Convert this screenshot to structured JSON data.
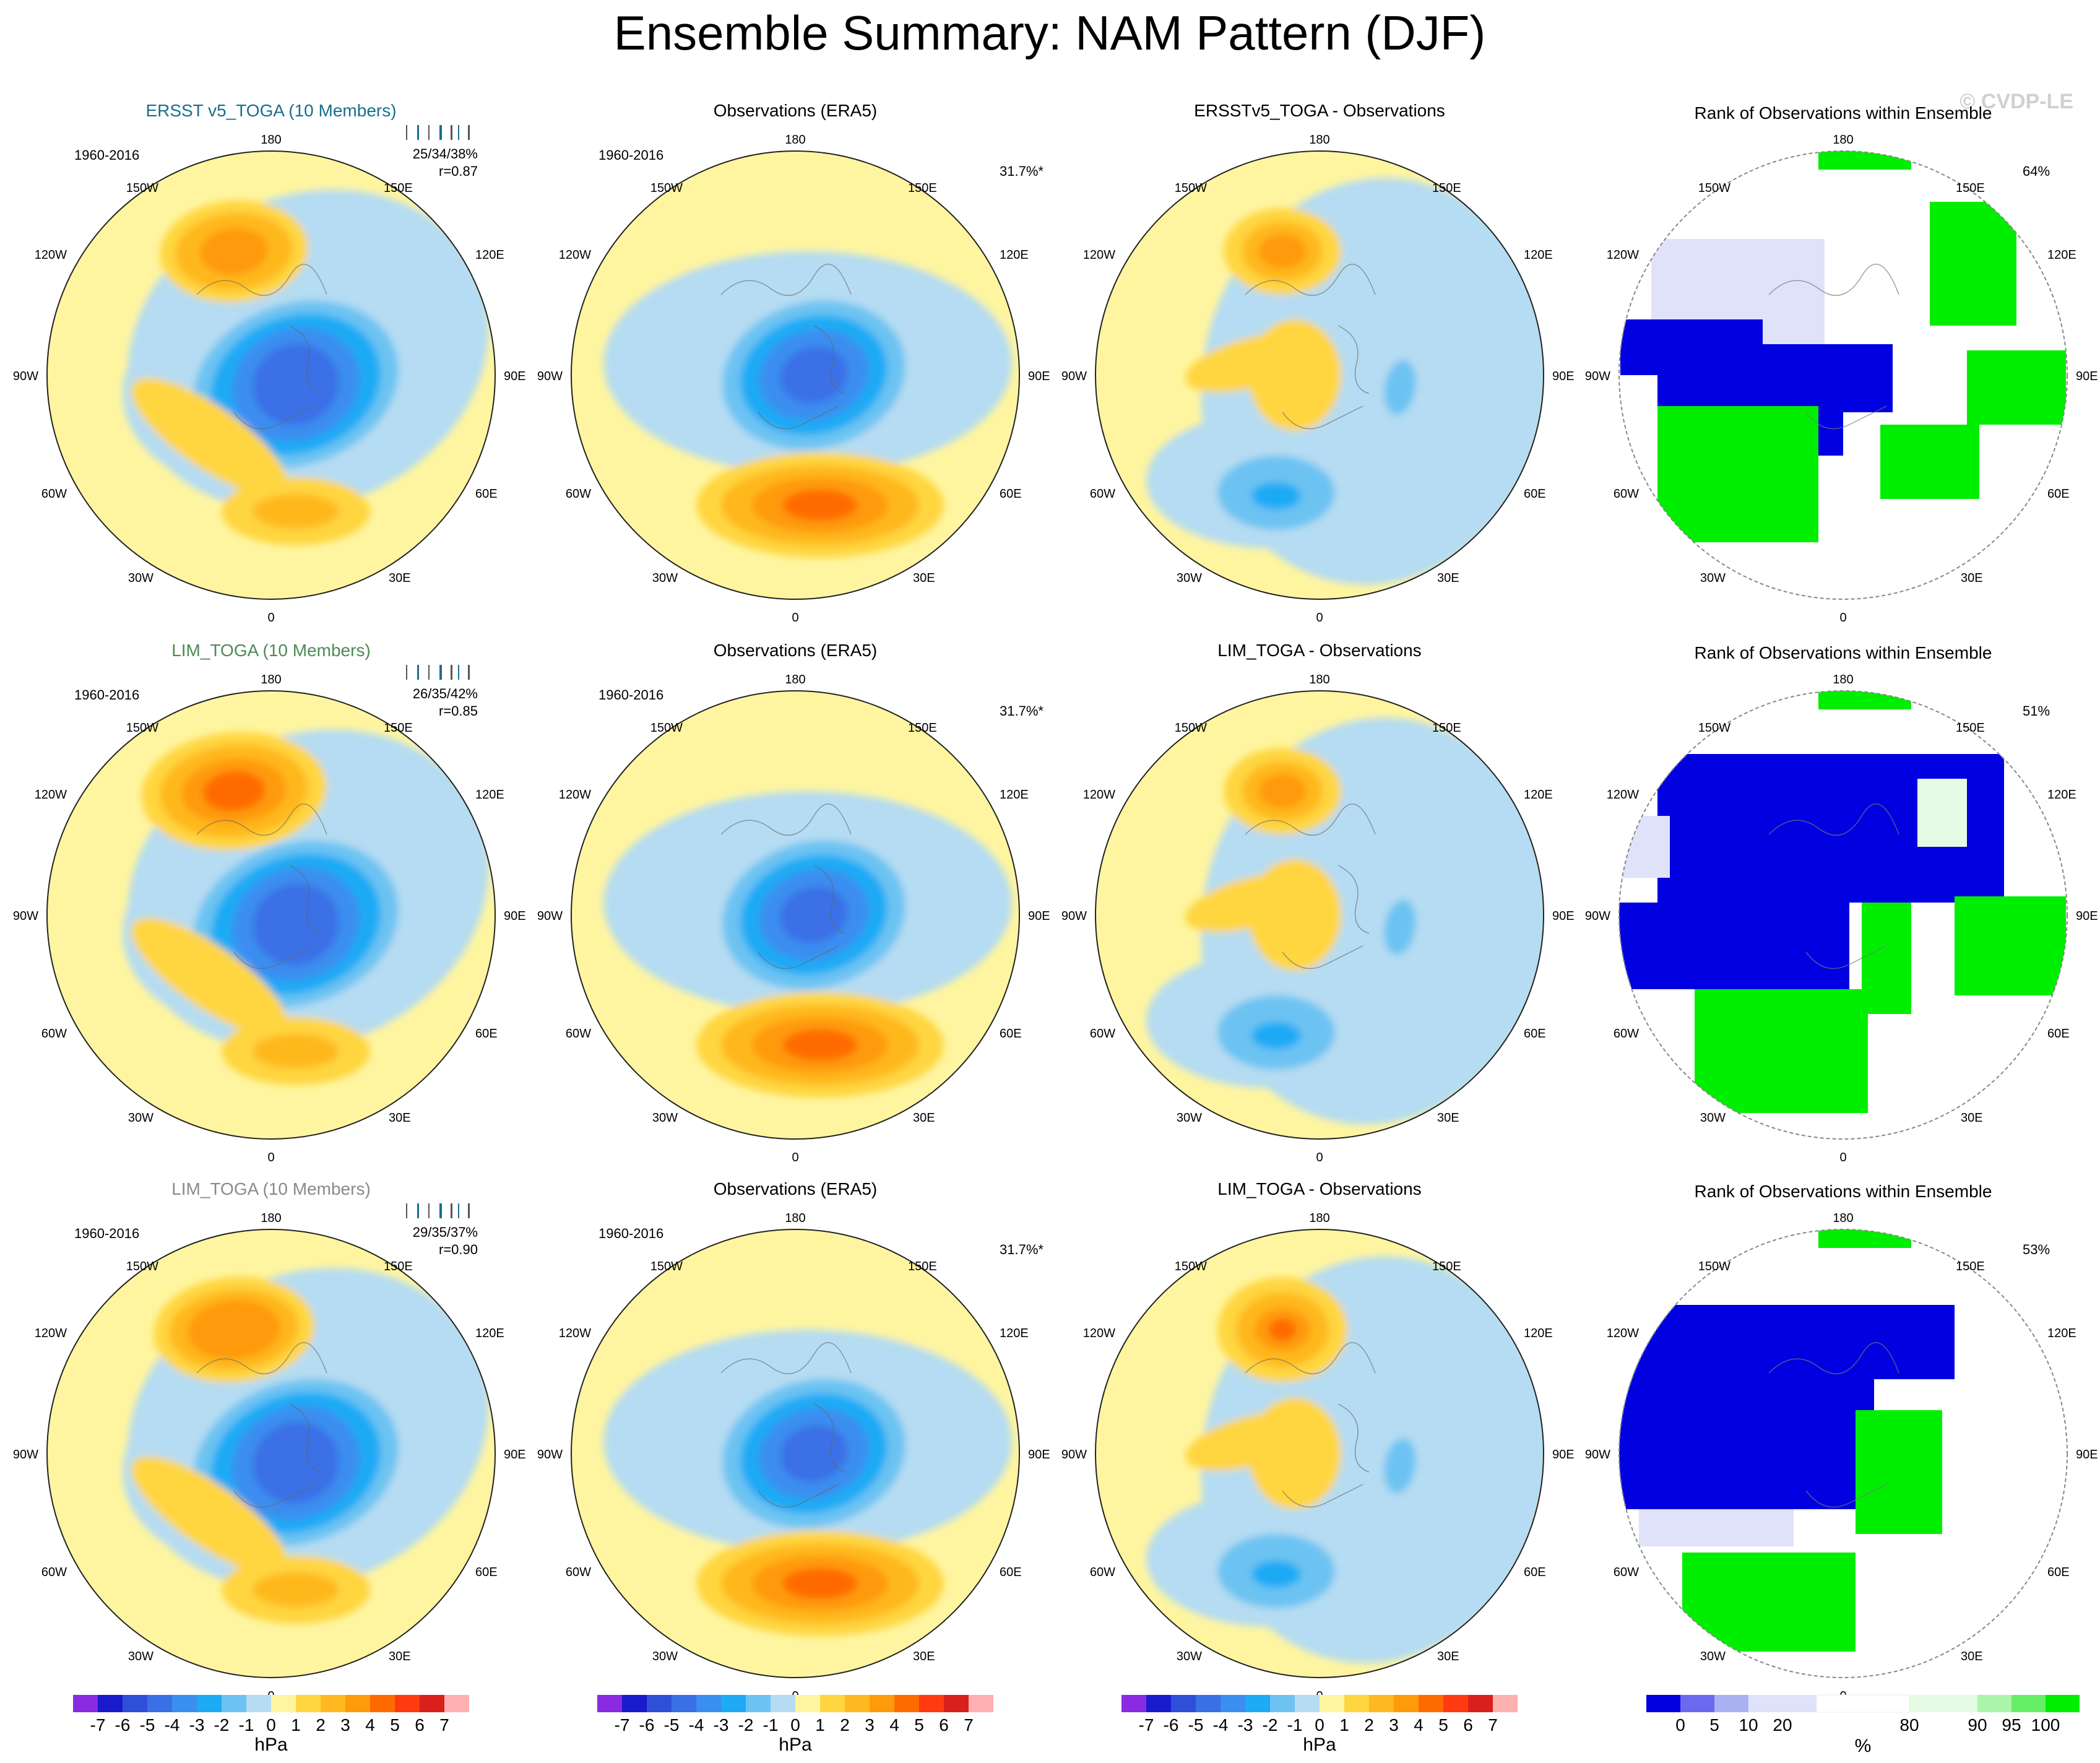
{
  "page": {
    "title": "Ensemble Summary: NAM Pattern (DJF)",
    "watermark": "© CVDP-LE"
  },
  "lon_labels": {
    "top": "180",
    "bottom": "0",
    "upper_left": "150W",
    "upper_right": "150E",
    "left_upper": "120W",
    "right_upper": "120E",
    "left": "90W",
    "right": "90E",
    "left_lower": "60W",
    "right_lower": "60E",
    "lower_left": "30W",
    "lower_right": "30E"
  },
  "rows": [
    {
      "ensemble": {
        "title": "ERSST v5_TOGA (10 Members)",
        "title_color": "#1a6e8e",
        "period": "1960-2016",
        "stats": "25/34/38%",
        "r": "r=0.87"
      },
      "observations": {
        "title": "Observations (ERA5)",
        "period": "1960-2016",
        "pct": "31.7%*"
      },
      "difference": {
        "title": "ERSSTv5_TOGA - Observations"
      },
      "rank": {
        "title": "Rank of Observations within Ensemble",
        "pct": "64%"
      }
    },
    {
      "ensemble": {
        "title": "LIM_TOGA (10 Members)",
        "title_color": "#4e8a56",
        "period": "1960-2016",
        "stats": "26/35/42%",
        "r": "r=0.85"
      },
      "observations": {
        "title": "Observations (ERA5)",
        "period": "1960-2016",
        "pct": "31.7%*"
      },
      "difference": {
        "title": "LIM_TOGA - Observations"
      },
      "rank": {
        "title": "Rank of Observations within Ensemble",
        "pct": "51%"
      }
    },
    {
      "ensemble": {
        "title": "LIM_TOGA (10 Members)",
        "title_color": "#8a8a8a",
        "period": "1960-2016",
        "stats": "29/35/37%",
        "r": "r=0.90"
      },
      "observations": {
        "title": "Observations (ERA5)",
        "period": "1960-2016",
        "pct": "31.7%*"
      },
      "difference": {
        "title": "LIM_TOGA - Observations"
      },
      "rank": {
        "title": "Rank of Observations within Ensemble",
        "pct": "53%"
      }
    }
  ],
  "colorbar_hpa": {
    "unit": "hPa",
    "labels": [
      "-7",
      "-6",
      "-5",
      "-4",
      "-3",
      "-2",
      "-1",
      "0",
      "1",
      "2",
      "3",
      "4",
      "5",
      "6",
      "7"
    ],
    "colors": [
      "#8a2be2",
      "#1a1acd",
      "#2f4fd8",
      "#3b6fe6",
      "#3a8ef0",
      "#1eaaf5",
      "#6cc3f2",
      "#b5dcf2",
      "#fff5a0",
      "#ffd640",
      "#ffb81f",
      "#ff9a0a",
      "#ff6a00",
      "#ff3a10",
      "#d9201c",
      "#ffb0b0"
    ]
  },
  "colorbar_pct": {
    "unit": "%",
    "labels": [
      "0",
      "5",
      "10",
      "20",
      "80",
      "90",
      "95",
      "100"
    ],
    "colors": [
      "#0000e0",
      "#6a6aee",
      "#aab0f2",
      "#e0e2fa",
      "#ffffff",
      "#e4fae4",
      "#aaf5aa",
      "#66ee66",
      "#00ee00"
    ]
  },
  "colors": {
    "yellow": "#fff5a0",
    "lightblue": "#b5dcf2",
    "rank_blue": "#0000e0",
    "rank_lav": "#e0e2fa",
    "rank_green": "#00ee00",
    "rank_palegreen": "#e4fae4"
  }
}
